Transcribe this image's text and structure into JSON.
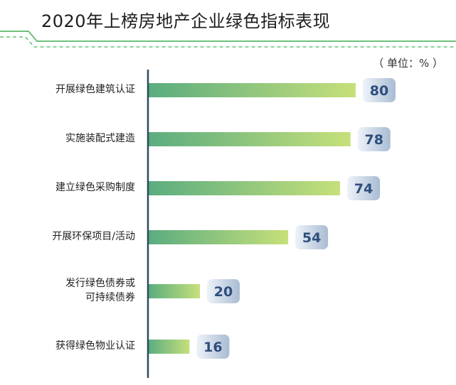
{
  "title": "2020年上榜房地产企业绿色指标表现",
  "unit": "（ 单位：% ）",
  "colors": {
    "bar_start": "#5aac80",
    "bar_end": "#c6e07a",
    "badge_light": "#eef3f9",
    "badge_dark": "#a9bcd3",
    "value_text": "#2f4e7d",
    "axis": "#2e4a63",
    "deco_line": "#6cc07a"
  },
  "chart_data": {
    "type": "bar",
    "orientation": "horizontal",
    "title": "2020年上榜房地产企业绿色指标表现",
    "unit": "（ 单位：% ）",
    "categories": [
      [
        "开展绿色建筑认证"
      ],
      [
        "实施装配式建造"
      ],
      [
        "建立绿色采购制度"
      ],
      [
        "开展环保项目/活动"
      ],
      [
        "发行绿色债券或",
        "可持续债券"
      ],
      [
        "获得绿色物业认证"
      ]
    ],
    "values": [
      80,
      78,
      74,
      54,
      20,
      16
    ],
    "xlim": [
      0,
      100
    ],
    "grid": false,
    "legend": "none"
  }
}
